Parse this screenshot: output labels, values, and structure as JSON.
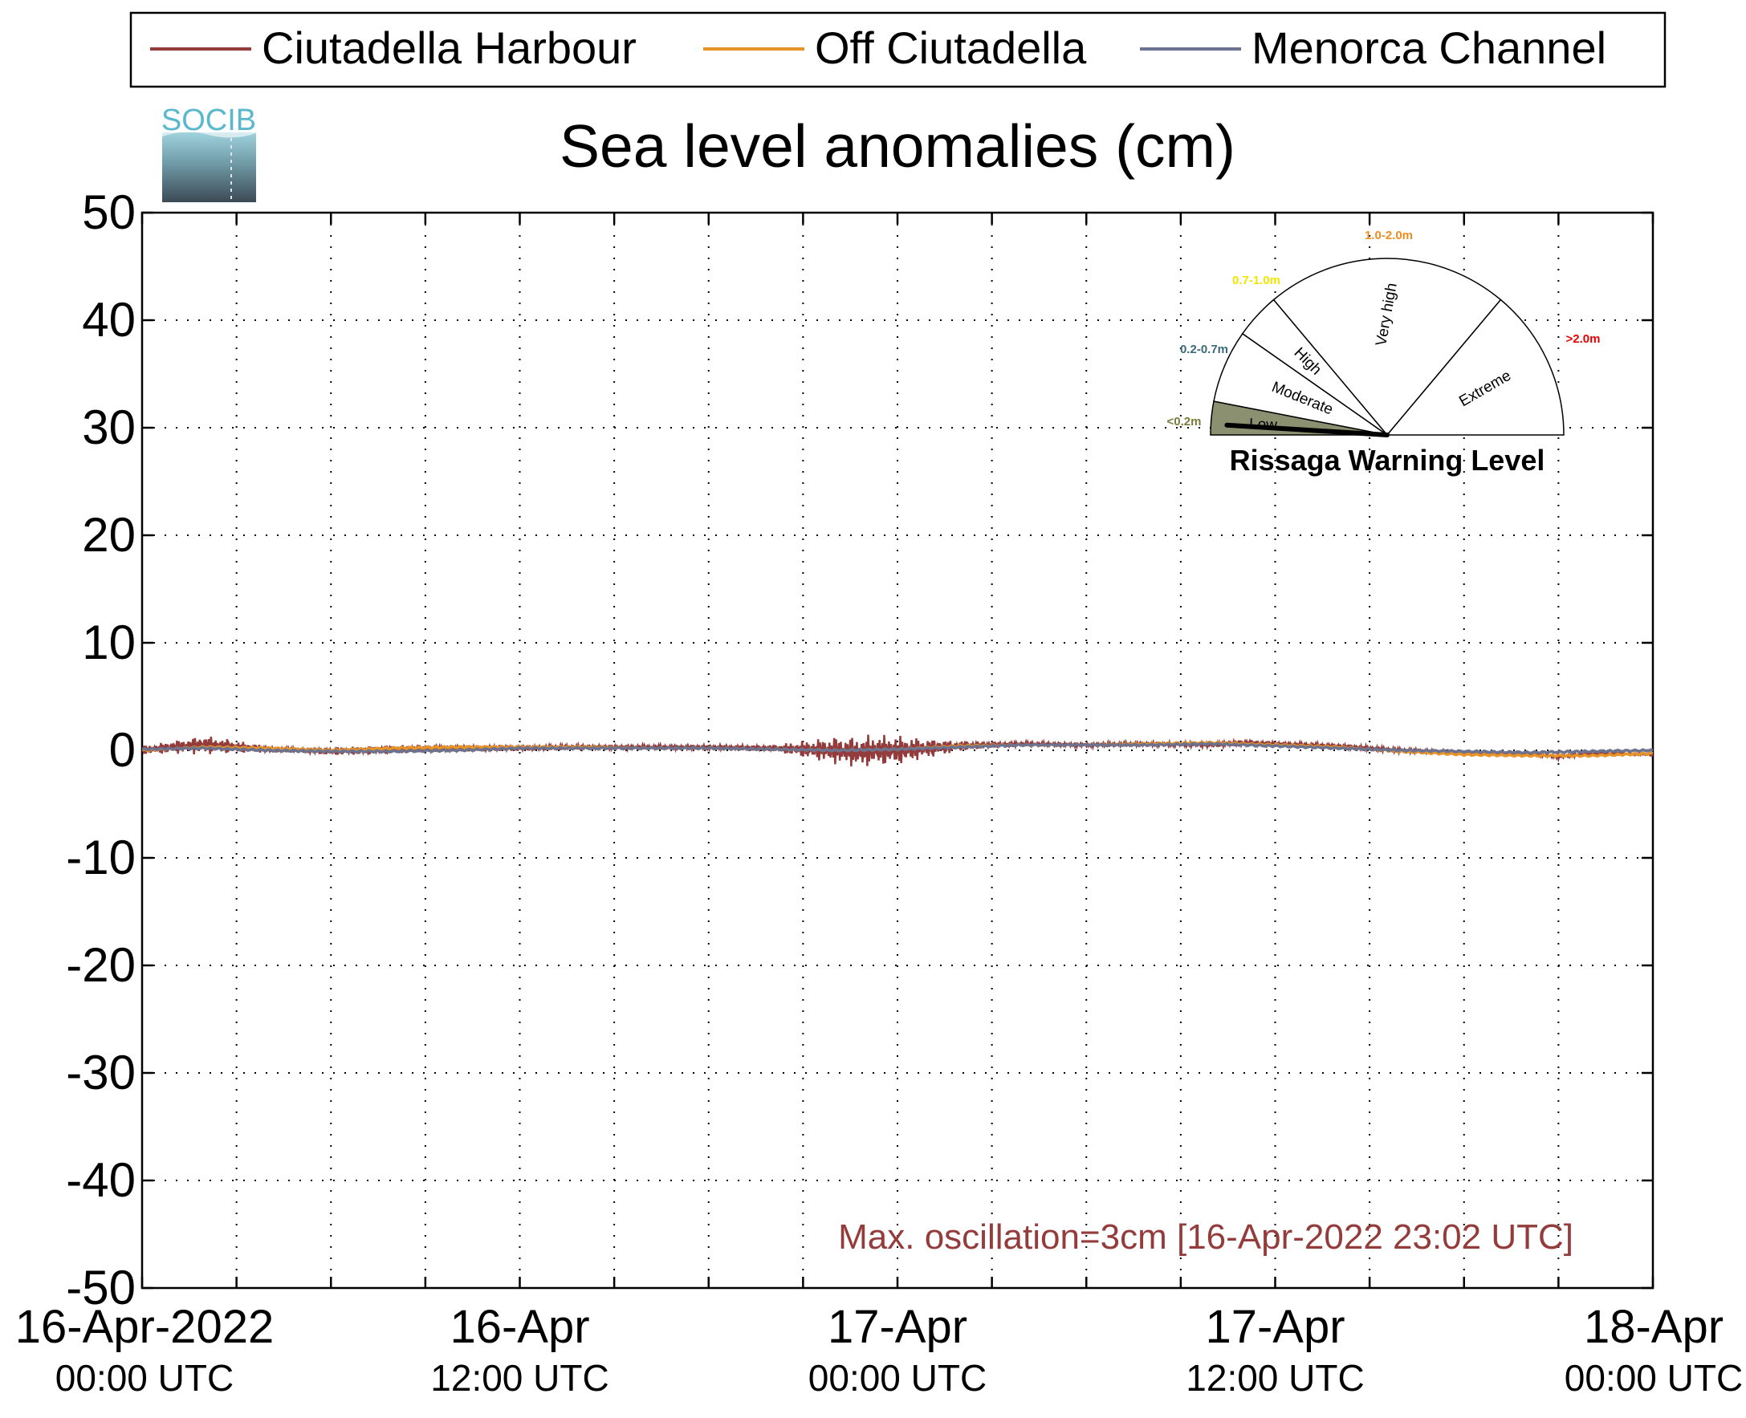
{
  "title": "Sea level anomalies (cm)",
  "logo_text": "SOCIB",
  "legend": [
    {
      "label": "Ciutadella Harbour",
      "color": "#943b3b"
    },
    {
      "label": "Off Ciutadella",
      "color": "#e69428"
    },
    {
      "label": "Menorca Channel",
      "color": "#6b7391"
    }
  ],
  "annotation": "Max. oscillation=3cm [16-Apr-2022 23:02 UTC]",
  "annotation_color": "#943b3b",
  "gauge": {
    "title": "Rissaga Warning Level",
    "sectors": [
      {
        "name": "Low",
        "range": "<0.2m",
        "color": "#7a7a3a",
        "fill": "#8a9070"
      },
      {
        "name": "Moderate",
        "range": "0.2-0.7m",
        "color": "#3b6a78",
        "fill": "#ffffff"
      },
      {
        "name": "High",
        "range": "0.7-1.0m",
        "color": "#f2e600",
        "fill": "#ffffff"
      },
      {
        "name": "Very high",
        "range": "1.0-2.0m",
        "color": "#f08c1e",
        "fill": "#ffffff"
      },
      {
        "name": "Extreme",
        "range": ">2.0m",
        "color": "#e60000",
        "fill": "#ffffff"
      }
    ],
    "needle_value": "Low"
  },
  "chart_data": {
    "type": "line",
    "title": "Sea level anomalies (cm)",
    "ylim": [
      -50,
      50
    ],
    "yticks": [
      50,
      40,
      30,
      20,
      10,
      0,
      -10,
      -20,
      -30,
      -40,
      -50
    ],
    "ytick_labels": [
      "50",
      "40",
      "30",
      "20",
      "10",
      "0",
      "-10",
      "-20",
      "-30",
      "-40",
      "-50"
    ],
    "xlim_hours": [
      0,
      48
    ],
    "xticks": [
      {
        "hour": 0,
        "line1": "16-Apr-2022",
        "line2": "00:00 UTC"
      },
      {
        "hour": 12,
        "line1": "16-Apr",
        "line2": "12:00 UTC"
      },
      {
        "hour": 24,
        "line1": "17-Apr",
        "line2": "00:00 UTC"
      },
      {
        "hour": 36,
        "line1": "17-Apr",
        "line2": "12:00 UTC"
      },
      {
        "hour": 48,
        "line1": "18-Apr",
        "line2": "00:00 UTC"
      }
    ],
    "minor_xticks_hours": [
      3,
      6,
      9,
      15,
      18,
      21,
      27,
      30,
      33,
      39,
      42,
      45
    ],
    "grid": true,
    "legend_position": "top",
    "series": [
      {
        "name": "Ciutadella Harbour",
        "color": "#943b3b",
        "x": [
          0,
          1,
          2,
          3,
          4,
          5,
          6,
          8,
          10,
          12,
          14,
          16,
          18,
          20,
          21,
          22,
          23,
          23.05,
          24,
          25,
          26,
          27,
          28,
          30,
          32,
          34,
          35,
          36,
          38,
          40,
          42,
          44,
          45,
          46,
          47,
          48
        ],
        "y": [
          0.0,
          0.3,
          0.5,
          0.3,
          0.1,
          0.0,
          -0.1,
          0.1,
          0.2,
          0.2,
          0.3,
          0.3,
          0.3,
          0.2,
          0.1,
          0.0,
          -0.2,
          0.0,
          0.0,
          0.2,
          0.4,
          0.5,
          0.6,
          0.5,
          0.6,
          0.5,
          0.7,
          0.6,
          0.4,
          0.0,
          -0.2,
          -0.3,
          -0.6,
          -0.3,
          -0.3,
          -0.4
        ],
        "amp": [
          0.4,
          0.6,
          0.9,
          0.6,
          0.3,
          0.2,
          0.4,
          0.4,
          0.3,
          0.3,
          0.2,
          0.2,
          0.2,
          0.3,
          0.8,
          1.3,
          1.5,
          1.5,
          1.4,
          0.9,
          0.5,
          0.3,
          0.2,
          0.2,
          0.2,
          0.2,
          0.3,
          0.2,
          0.2,
          0.2,
          0.1,
          0.1,
          0.2,
          0.1,
          0.1,
          0.1
        ]
      },
      {
        "name": "Off Ciutadella",
        "color": "#e69428",
        "x": [
          0,
          2,
          4,
          6,
          8,
          10,
          12,
          14,
          16,
          18,
          20,
          22,
          24,
          26,
          28,
          30,
          32,
          34,
          36,
          38,
          40,
          42,
          44,
          46,
          48
        ],
        "y": [
          0.0,
          0.3,
          0.2,
          0.0,
          0.2,
          0.3,
          0.3,
          0.3,
          0.2,
          0.2,
          0.1,
          0.0,
          0.1,
          0.4,
          0.5,
          0.5,
          0.6,
          0.7,
          0.5,
          0.3,
          -0.1,
          -0.4,
          -0.5,
          -0.5,
          -0.3
        ]
      },
      {
        "name": "Menorca Channel",
        "color": "#6b7391",
        "x": [
          0,
          2,
          4,
          6,
          8,
          10,
          12,
          14,
          16,
          18,
          20,
          22,
          24,
          26,
          28,
          30,
          32,
          34,
          36,
          38,
          40,
          42,
          44,
          46,
          48
        ],
        "y": [
          0.1,
          0.2,
          0.0,
          -0.1,
          -0.1,
          0.0,
          0.2,
          0.2,
          0.2,
          0.2,
          0.1,
          0.0,
          0.1,
          0.3,
          0.5,
          0.5,
          0.5,
          0.6,
          0.4,
          0.2,
          0.0,
          -0.1,
          -0.2,
          -0.1,
          0.0
        ]
      }
    ]
  }
}
